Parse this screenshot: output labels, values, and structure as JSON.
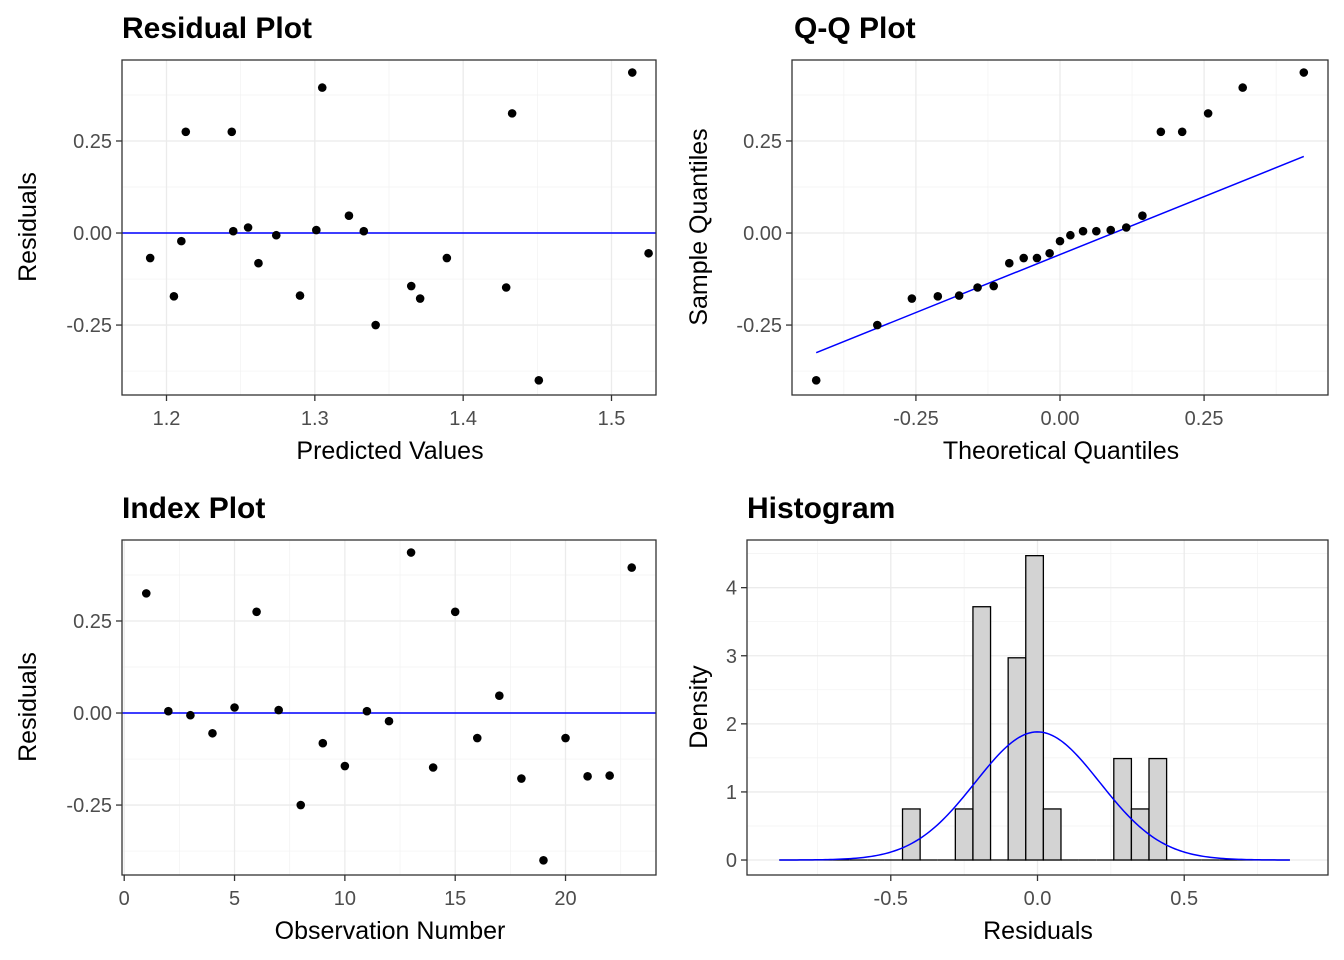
{
  "chart_data": [
    {
      "id": "residual",
      "type": "scatter",
      "title": "Residual Plot",
      "xlabel": "Predicted Values",
      "ylabel": "Residuals",
      "xlim": [
        1.17,
        1.53
      ],
      "ylim": [
        -0.44,
        0.47
      ],
      "x_ticks": [
        1.2,
        1.3,
        1.4,
        1.5
      ],
      "x_tick_labels": [
        "1.2",
        "1.3",
        "1.4",
        "1.5"
      ],
      "y_ticks": [
        -0.25,
        0,
        0.25
      ],
      "y_tick_labels": [
        "-0.25",
        "0.00",
        "0.25"
      ],
      "hline": 0,
      "line_color": "#0000ff",
      "points": [
        [
          1.189,
          -0.068
        ],
        [
          1.205,
          -0.172
        ],
        [
          1.21,
          -0.022
        ],
        [
          1.213,
          0.275
        ],
        [
          1.244,
          0.275
        ],
        [
          1.245,
          0.005
        ],
        [
          1.255,
          0.015
        ],
        [
          1.262,
          -0.082
        ],
        [
          1.274,
          -0.006
        ],
        [
          1.29,
          -0.17
        ],
        [
          1.301,
          0.008
        ],
        [
          1.305,
          0.395
        ],
        [
          1.323,
          0.047
        ],
        [
          1.333,
          0.005
        ],
        [
          1.341,
          -0.25
        ],
        [
          1.365,
          -0.144
        ],
        [
          1.371,
          -0.178
        ],
        [
          1.389,
          -0.068
        ],
        [
          1.429,
          -0.148
        ],
        [
          1.433,
          0.325
        ],
        [
          1.451,
          -0.4
        ],
        [
          1.514,
          0.436
        ],
        [
          1.525,
          -0.055
        ]
      ]
    },
    {
      "id": "qq",
      "type": "scatter",
      "title": "Q-Q Plot",
      "xlabel": "Theoretical Quantiles",
      "ylabel": "Sample Quantiles",
      "xlim": [
        -0.465,
        0.465
      ],
      "ylim": [
        -0.44,
        0.47
      ],
      "x_ticks": [
        -0.25,
        0,
        0.25
      ],
      "x_tick_labels": [
        "-0.25",
        "0.00",
        "0.25"
      ],
      "y_ticks": [
        -0.25,
        0,
        0.25
      ],
      "y_tick_labels": [
        "-0.25",
        "0.00",
        "0.25"
      ],
      "line_color": "#0000ff",
      "ref_line": [
        [
          -0.423,
          -0.325
        ],
        [
          0.423,
          0.208
        ]
      ],
      "points": [
        [
          -0.423,
          -0.4
        ],
        [
          -0.317,
          -0.25
        ],
        [
          -0.257,
          -0.178
        ],
        [
          -0.212,
          -0.172
        ],
        [
          -0.175,
          -0.17
        ],
        [
          -0.143,
          -0.148
        ],
        [
          -0.115,
          -0.144
        ],
        [
          -0.088,
          -0.082
        ],
        [
          -0.063,
          -0.068
        ],
        [
          -0.04,
          -0.068
        ],
        [
          -0.018,
          -0.055
        ],
        [
          0.0,
          -0.022
        ],
        [
          0.018,
          -0.006
        ],
        [
          0.04,
          0.005
        ],
        [
          0.063,
          0.005
        ],
        [
          0.088,
          0.008
        ],
        [
          0.115,
          0.015
        ],
        [
          0.143,
          0.047
        ],
        [
          0.175,
          0.275
        ],
        [
          0.212,
          0.275
        ],
        [
          0.257,
          0.325
        ],
        [
          0.317,
          0.395
        ],
        [
          0.423,
          0.436
        ]
      ]
    },
    {
      "id": "index",
      "type": "scatter",
      "title": "Index Plot",
      "xlabel": "Observation Number",
      "ylabel": "Residuals",
      "xlim": [
        -0.1,
        24.1
      ],
      "ylim": [
        -0.44,
        0.47
      ],
      "x_ticks": [
        0,
        5,
        10,
        15,
        20
      ],
      "x_tick_labels": [
        "0",
        "5",
        "10",
        "15",
        "20"
      ],
      "y_ticks": [
        -0.25,
        0,
        0.25
      ],
      "y_tick_labels": [
        "-0.25",
        "0.00",
        "0.25"
      ],
      "hline": 0,
      "line_color": "#0000ff",
      "points": [
        [
          1,
          0.325
        ],
        [
          2,
          0.005
        ],
        [
          3,
          -0.006
        ],
        [
          4,
          -0.055
        ],
        [
          5,
          0.015
        ],
        [
          6,
          0.275
        ],
        [
          7,
          0.008
        ],
        [
          8,
          -0.25
        ],
        [
          9,
          -0.082
        ],
        [
          10,
          -0.144
        ],
        [
          11,
          0.005
        ],
        [
          12,
          -0.022
        ],
        [
          13,
          0.436
        ],
        [
          14,
          -0.148
        ],
        [
          15,
          0.275
        ],
        [
          16,
          -0.068
        ],
        [
          17,
          0.047
        ],
        [
          18,
          -0.178
        ],
        [
          19,
          -0.4
        ],
        [
          20,
          -0.068
        ],
        [
          21,
          -0.172
        ],
        [
          22,
          -0.17
        ],
        [
          23,
          0.395
        ]
      ]
    },
    {
      "id": "histogram",
      "type": "bar",
      "title": "Histogram",
      "xlabel": "Residuals",
      "ylabel": "Density",
      "xlim": [
        -0.99,
        0.99
      ],
      "ylim": [
        -0.22,
        4.7
      ],
      "x_ticks": [
        -0.5,
        0,
        0.5
      ],
      "x_tick_labels": [
        "-0.5",
        "0.0",
        "0.5"
      ],
      "y_ticks": [
        0,
        1,
        2,
        3,
        4
      ],
      "y_tick_labels": [
        "0",
        "1",
        "2",
        "3",
        "4"
      ],
      "bar_fill": "#d3d3d3",
      "bar_stroke": "#000000",
      "line_color": "#0000ff",
      "bins": [
        [
          -0.88,
          -0.82,
          0
        ],
        [
          -0.82,
          -0.76,
          0
        ],
        [
          -0.76,
          -0.7,
          0
        ],
        [
          -0.7,
          -0.64,
          0
        ],
        [
          -0.64,
          -0.58,
          0
        ],
        [
          -0.58,
          -0.52,
          0
        ],
        [
          -0.52,
          -0.46,
          0
        ],
        [
          -0.46,
          -0.4,
          0.75
        ],
        [
          -0.4,
          -0.34,
          0
        ],
        [
          -0.34,
          -0.28,
          0
        ],
        [
          -0.28,
          -0.22,
          0.75
        ],
        [
          -0.22,
          -0.16,
          3.72
        ],
        [
          -0.16,
          -0.1,
          0
        ],
        [
          -0.1,
          -0.04,
          2.97
        ],
        [
          -0.04,
          0.02,
          4.47
        ],
        [
          0.02,
          0.08,
          0.75
        ],
        [
          0.08,
          0.14,
          0
        ],
        [
          0.14,
          0.2,
          0
        ],
        [
          0.2,
          0.26,
          0
        ],
        [
          0.26,
          0.32,
          1.49
        ],
        [
          0.32,
          0.38,
          0.75
        ],
        [
          0.38,
          0.44,
          1.49
        ],
        [
          0.44,
          0.5,
          0
        ],
        [
          0.5,
          0.56,
          0
        ],
        [
          0.56,
          0.62,
          0
        ],
        [
          0.62,
          0.68,
          0
        ],
        [
          0.68,
          0.74,
          0
        ],
        [
          0.74,
          0.8,
          0
        ],
        [
          0.8,
          0.86,
          0
        ]
      ],
      "density_curve": {
        "mean": 0.0,
        "sd": 0.212,
        "from": -0.88,
        "to": 0.86
      }
    }
  ]
}
